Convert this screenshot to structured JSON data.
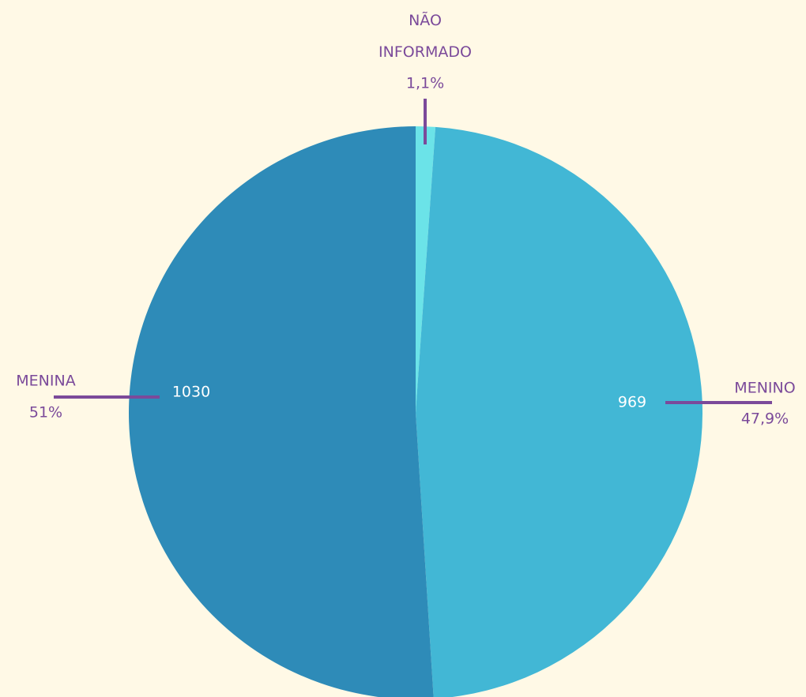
{
  "chart_data": {
    "type": "pie",
    "categories": [
      "NÃO INFORMADO",
      "MENINO",
      "MENINA"
    ],
    "values": [
      1.1,
      47.9,
      51
    ],
    "value_labels": [
      "1,1%",
      "47,9%",
      "51%"
    ],
    "counts": [
      null,
      969,
      1030
    ],
    "colors": [
      "#6be3e8",
      "#42b7d5",
      "#2e8bb8"
    ]
  }
}
